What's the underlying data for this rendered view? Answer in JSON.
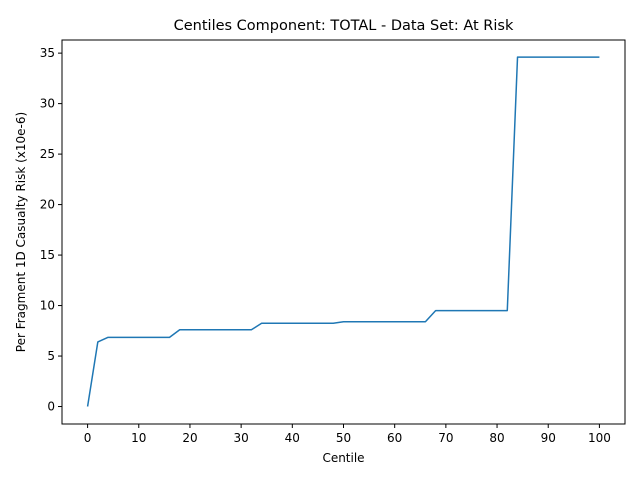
{
  "chart_data": {
    "type": "line",
    "title": "Centiles Component: TOTAL - Data Set: At Risk",
    "xlabel": "Centile",
    "ylabel": "Per Fragment 1D Casualty Risk (x10e-6)",
    "xlim": [
      -5,
      105
    ],
    "ylim": [
      -1.73,
      36.3
    ],
    "xticks": [
      0,
      10,
      20,
      30,
      40,
      50,
      60,
      70,
      80,
      90,
      100
    ],
    "yticks": [
      0,
      5,
      10,
      15,
      20,
      25,
      30,
      35
    ],
    "grid": false,
    "series": [
      {
        "color": "#1f77b4",
        "x": [
          0,
          2,
          4,
          16,
          18,
          32,
          34,
          48,
          50,
          66,
          68,
          82,
          84,
          100
        ],
        "y": [
          0,
          6.4,
          6.85,
          6.85,
          7.6,
          7.6,
          8.25,
          8.25,
          8.4,
          8.4,
          9.5,
          9.5,
          34.6,
          34.6
        ]
      }
    ]
  }
}
